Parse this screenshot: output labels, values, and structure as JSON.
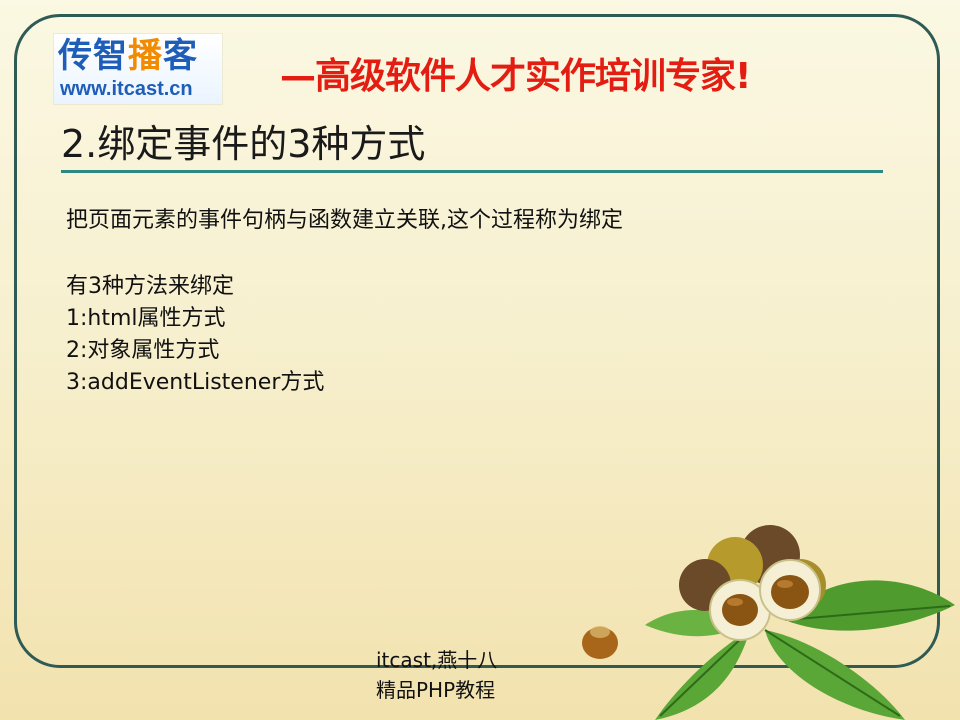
{
  "logo": {
    "part_a": "传智",
    "part_b": "播",
    "part_c": "客",
    "url": "www.itcast.cn"
  },
  "tagline": "—高级软件人才实作培训专家!",
  "title": "2.绑定事件的3种方式",
  "content": {
    "para1": "把页面元素的事件句柄与函数建立关联,这个过程称为绑定",
    "lines": [
      "有3种方法来绑定",
      "1:html属性方式",
      "2:对象属性方式",
      "3:addEventListener方式"
    ]
  },
  "footer": {
    "line1": "itcast,燕十八",
    "line2": "精品PHP教程"
  },
  "colors": {
    "frame": "#2f5b55",
    "tagline": "#e41d13",
    "rule": "#2a8a82",
    "logo_blue": "#1e5db8",
    "logo_orange": "#f28b00"
  },
  "decoration": "chestnut-leaves-illustration"
}
